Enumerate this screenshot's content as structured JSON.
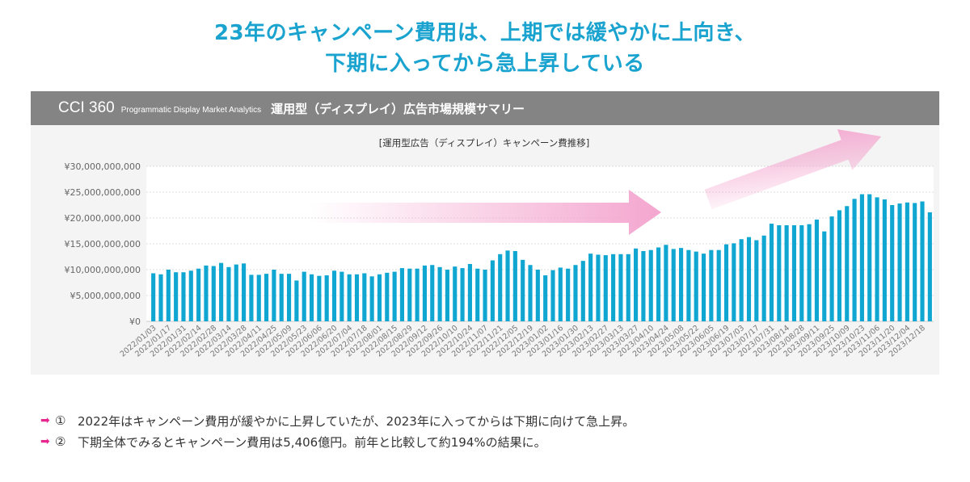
{
  "headline": {
    "line1": "23年のキャンペーン費用は、上期では緩やかに上向き、",
    "line2": "下期に入ってから急上昇している"
  },
  "panel": {
    "brand": "CCI 360",
    "brand_sub": "Programmatic Display Market Analytics",
    "title": "運用型（ディスプレイ）広告市場規模サマリー"
  },
  "colors": {
    "bar": "#0fa6d1",
    "headline": "#1aa3cf",
    "arrow": "#f4a6cf",
    "note_arrow": "#e8288f"
  },
  "chart_data": {
    "type": "bar",
    "title": "[運用型広告（ディスプレイ）キャンペーン費推移]",
    "xlabel": "",
    "ylabel": "",
    "ylim": [
      0,
      30000000000
    ],
    "yticks": [
      0,
      5000000000,
      10000000000,
      15000000000,
      20000000000,
      25000000000,
      30000000000
    ],
    "ytick_labels": [
      "¥0",
      "¥5,000,000,000",
      "¥10,000,000,000",
      "¥15,000,000,000",
      "¥20,000,000,000",
      "¥25,000,000,000",
      "¥30,000,000,000"
    ],
    "grid": true,
    "xtick_labels": [
      "2022/01/03",
      "2022/01/17",
      "2022/01/31",
      "2022/02/14",
      "2022/02/28",
      "2022/03/14",
      "2022/03/28",
      "2022/04/11",
      "2022/04/25",
      "2022/05/09",
      "2022/05/23",
      "2022/06/06",
      "2022/06/20",
      "2022/07/04",
      "2022/07/18",
      "2022/08/01",
      "2022/08/15",
      "2022/08/29",
      "2022/09/12",
      "2022/09/26",
      "2022/10/10",
      "2022/10/24",
      "2022/11/07",
      "2022/11/21",
      "2022/12/05",
      "2022/12/19",
      "2023/01/02",
      "2023/01/16",
      "2023/01/30",
      "2023/02/13",
      "2023/02/27",
      "2023/03/13",
      "2023/03/27",
      "2023/04/10",
      "2023/04/24",
      "2023/05/08",
      "2023/05/22",
      "2023/06/05",
      "2023/06/19",
      "2023/07/03",
      "2023/07/17",
      "2023/07/31",
      "2023/08/14",
      "2023/08/28",
      "2023/09/11",
      "2023/09/25",
      "2023/10/09",
      "2023/10/23",
      "2023/11/06",
      "2023/11/20",
      "2023/12/04",
      "2023/12/18"
    ],
    "series": [
      {
        "name": "キャンペーン費",
        "values": [
          9.3,
          9.1,
          10.0,
          9.5,
          9.5,
          9.8,
          10.2,
          10.8,
          10.7,
          11.3,
          10.5,
          11.0,
          11.2,
          9.0,
          9.0,
          9.2,
          10.0,
          9.2,
          9.2,
          7.9,
          9.6,
          9.1,
          8.8,
          8.9,
          9.8,
          9.6,
          9.1,
          9.1,
          9.3,
          8.7,
          9.1,
          9.4,
          9.6,
          10.3,
          10.2,
          10.2,
          10.8,
          10.9,
          10.5,
          10.0,
          10.6,
          10.3,
          11.1,
          10.2,
          10.0,
          11.8,
          13.0,
          13.7,
          13.6,
          11.9,
          10.9,
          10.0,
          8.9,
          9.9,
          10.4,
          10.2,
          10.9,
          11.7,
          13.1,
          12.9,
          12.8,
          13.0,
          13.0,
          13.0,
          14.1,
          13.6,
          13.8,
          14.3,
          14.8,
          14.0,
          14.2,
          13.8,
          13.5,
          13.1,
          13.8,
          13.8,
          14.9,
          15.1,
          15.9,
          16.3,
          15.7,
          16.6,
          18.9,
          18.6,
          18.6,
          18.6,
          18.6,
          18.8,
          19.7,
          17.4,
          20.3,
          21.5,
          22.3,
          23.7,
          24.6,
          24.6,
          24.0,
          23.6,
          22.5,
          22.8,
          23.0,
          22.9,
          23.2,
          21.1
        ],
        "unit": "billion JPY"
      }
    ],
    "annotations": [
      "arrow-flat-first-half",
      "arrow-rising-second-half"
    ]
  },
  "notes": [
    {
      "marker": "①",
      "text": "2022年はキャンペーン費用が緩やかに上昇していたが、2023年に入ってからは下期に向けて急上昇。"
    },
    {
      "marker": "②",
      "text": "下期全体でみるとキャンペーン費用は5,406億円。前年と比較して約194%の結果に。"
    }
  ]
}
